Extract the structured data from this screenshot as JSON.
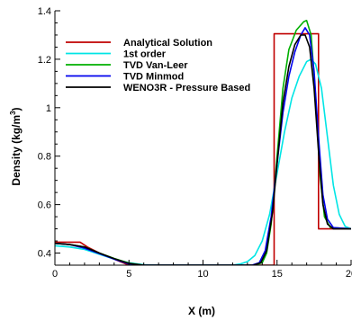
{
  "chart_data": {
    "type": "line",
    "xlabel": "X (m)",
    "ylabel_parts": {
      "main": "Density (kg/m",
      "sup": "3",
      "close": ")"
    },
    "xlim": [
      0,
      20
    ],
    "ylim": [
      0.35,
      1.4
    ],
    "xticks": [
      0,
      5,
      10,
      15,
      20
    ],
    "xtick_labels": [
      "0",
      "5",
      "10",
      "15",
      "20"
    ],
    "yticks": [
      0.4,
      0.6,
      0.8,
      1.0,
      1.2,
      1.4
    ],
    "ytick_labels": [
      "0.4",
      "0.6",
      "0.8",
      "1",
      "1.2",
      "1.4"
    ],
    "grid": false,
    "legend_position": "top-left",
    "series": [
      {
        "name": "Analytical Solution",
        "color": "#c00000",
        "points": [
          [
            0,
            0.445
          ],
          [
            1.7,
            0.445
          ],
          [
            2.2,
            0.425
          ],
          [
            3,
            0.4
          ],
          [
            4,
            0.375
          ],
          [
            5,
            0.35
          ],
          [
            10,
            0.35
          ],
          [
            14.8,
            0.35
          ],
          [
            14.8,
            1.305
          ],
          [
            17.8,
            1.305
          ],
          [
            17.8,
            0.5
          ],
          [
            20,
            0.5
          ]
        ]
      },
      {
        "name": "1st order",
        "color": "#00e5e5",
        "points": [
          [
            0,
            0.43
          ],
          [
            1,
            0.425
          ],
          [
            2,
            0.415
          ],
          [
            3,
            0.395
          ],
          [
            4,
            0.375
          ],
          [
            5,
            0.36
          ],
          [
            6,
            0.352
          ],
          [
            7,
            0.35
          ],
          [
            12,
            0.35
          ],
          [
            12.5,
            0.355
          ],
          [
            13,
            0.365
          ],
          [
            13.5,
            0.39
          ],
          [
            14,
            0.45
          ],
          [
            14.5,
            0.56
          ],
          [
            15,
            0.73
          ],
          [
            15.5,
            0.9
          ],
          [
            16,
            1.04
          ],
          [
            16.5,
            1.13
          ],
          [
            17,
            1.19
          ],
          [
            17.3,
            1.2
          ],
          [
            17.6,
            1.18
          ],
          [
            18,
            1.08
          ],
          [
            18.4,
            0.88
          ],
          [
            18.8,
            0.68
          ],
          [
            19.2,
            0.56
          ],
          [
            19.6,
            0.51
          ],
          [
            20,
            0.5
          ]
        ]
      },
      {
        "name": "TVD Van-Leer",
        "color": "#00b000",
        "points": [
          [
            0,
            0.44
          ],
          [
            1,
            0.435
          ],
          [
            2,
            0.425
          ],
          [
            3,
            0.4
          ],
          [
            4,
            0.378
          ],
          [
            5,
            0.358
          ],
          [
            6,
            0.35
          ],
          [
            13.5,
            0.35
          ],
          [
            14,
            0.36
          ],
          [
            14.3,
            0.4
          ],
          [
            14.6,
            0.52
          ],
          [
            15,
            0.8
          ],
          [
            15.4,
            1.08
          ],
          [
            15.8,
            1.24
          ],
          [
            16.3,
            1.32
          ],
          [
            16.8,
            1.355
          ],
          [
            17,
            1.36
          ],
          [
            17.3,
            1.3
          ],
          [
            17.6,
            1.05
          ],
          [
            17.9,
            0.72
          ],
          [
            18.2,
            0.55
          ],
          [
            18.6,
            0.505
          ],
          [
            20,
            0.5
          ]
        ]
      },
      {
        "name": "TVD Minmod",
        "color": "#0000ee",
        "points": [
          [
            0,
            0.44
          ],
          [
            1,
            0.435
          ],
          [
            2,
            0.42
          ],
          [
            3,
            0.398
          ],
          [
            4,
            0.375
          ],
          [
            5,
            0.355
          ],
          [
            6,
            0.35
          ],
          [
            13.3,
            0.35
          ],
          [
            13.8,
            0.36
          ],
          [
            14.2,
            0.41
          ],
          [
            14.6,
            0.55
          ],
          [
            15,
            0.77
          ],
          [
            15.4,
            0.98
          ],
          [
            15.8,
            1.13
          ],
          [
            16.2,
            1.23
          ],
          [
            16.6,
            1.3
          ],
          [
            16.9,
            1.33
          ],
          [
            17.2,
            1.3
          ],
          [
            17.5,
            1.15
          ],
          [
            17.8,
            0.88
          ],
          [
            18.1,
            0.64
          ],
          [
            18.4,
            0.54
          ],
          [
            18.8,
            0.505
          ],
          [
            20,
            0.5
          ]
        ]
      },
      {
        "name": "WENO3R - Pressure Based",
        "color": "#000000",
        "points": [
          [
            0,
            0.44
          ],
          [
            1,
            0.435
          ],
          [
            2,
            0.425
          ],
          [
            3,
            0.4
          ],
          [
            4,
            0.377
          ],
          [
            5,
            0.357
          ],
          [
            6,
            0.35
          ],
          [
            13.4,
            0.35
          ],
          [
            13.9,
            0.36
          ],
          [
            14.3,
            0.41
          ],
          [
            14.7,
            0.57
          ],
          [
            15,
            0.77
          ],
          [
            15.4,
            1.02
          ],
          [
            15.8,
            1.17
          ],
          [
            16.2,
            1.26
          ],
          [
            16.6,
            1.3
          ],
          [
            16.9,
            1.3
          ],
          [
            17.2,
            1.25
          ],
          [
            17.5,
            1.08
          ],
          [
            17.8,
            0.82
          ],
          [
            18.1,
            0.6
          ],
          [
            18.4,
            0.52
          ],
          [
            18.8,
            0.5
          ],
          [
            20,
            0.5
          ]
        ]
      }
    ]
  }
}
